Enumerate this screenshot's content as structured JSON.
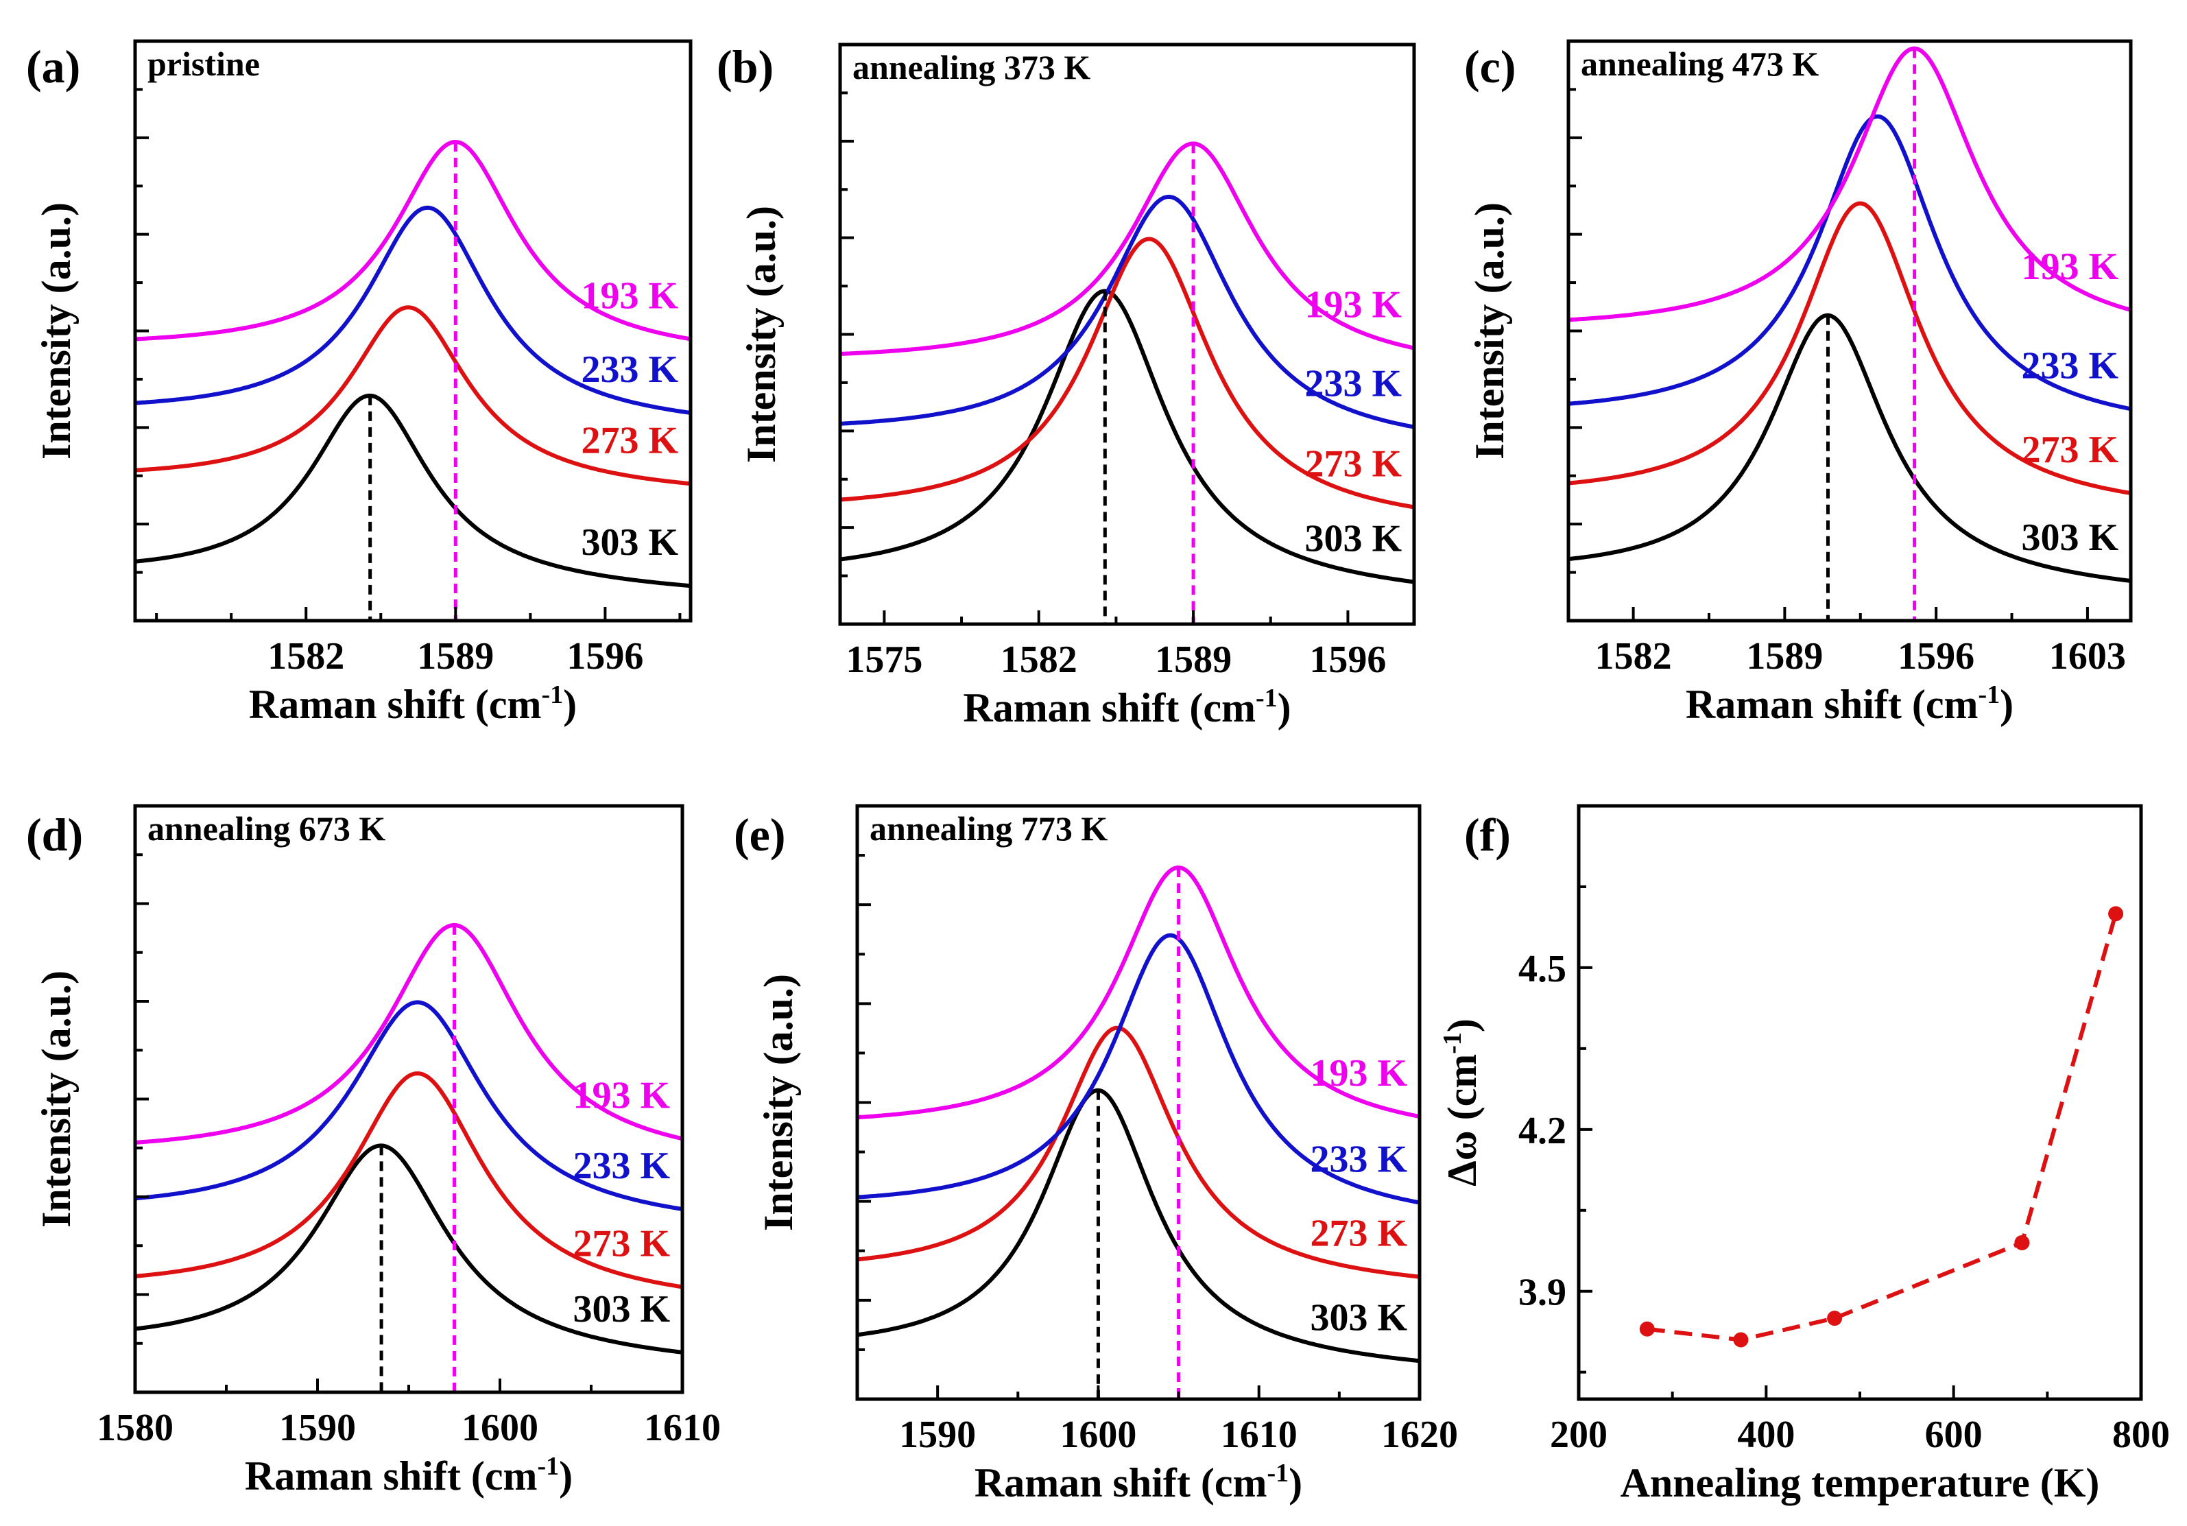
{
  "chart_data": [
    {
      "type": "line",
      "panel": "(a)",
      "title": "pristine",
      "xlabel": "Raman shift (cm-1)",
      "ylabel": "Intensity (a.u.)",
      "xlim": [
        1574,
        1600
      ],
      "xticks": [
        1582,
        1589,
        1596
      ],
      "peak_lines": [
        {
          "x": 1585,
          "color": "#000000"
        },
        {
          "x": 1589,
          "color": "#ee00ee"
        }
      ],
      "series": [
        {
          "name": "303 K",
          "color": "#000000",
          "peak": 1585,
          "width": 3.4,
          "offset": 0.0,
          "amp": 0.89,
          "slope": 0.04
        },
        {
          "name": "273 K",
          "color": "#dd1111",
          "peak": 1586.8,
          "width": 3.4,
          "offset": 0.47,
          "amp": 0.85,
          "slope": 0.03
        },
        {
          "name": "233 K",
          "color": "#1111cc",
          "peak": 1587.7,
          "width": 3.5,
          "offset": 0.78,
          "amp": 1.01,
          "slope": 0.03
        },
        {
          "name": "193 K",
          "color": "#ee00ee",
          "peak": 1589,
          "width": 3.5,
          "offset": 1.11,
          "amp": 1.0,
          "slope": 0.02
        }
      ]
    },
    {
      "type": "line",
      "panel": "(b)",
      "title": "annealing 373 K",
      "xlabel": "Raman shift (cm-1)",
      "ylabel": "Intensity (a.u.)",
      "xlim": [
        1573,
        1599
      ],
      "xticks": [
        1575,
        1582,
        1589,
        1596
      ],
      "peak_lines": [
        {
          "x": 1585,
          "color": "#000000"
        },
        {
          "x": 1589,
          "color": "#ee00ee"
        }
      ],
      "series": [
        {
          "name": "303 K",
          "color": "#000000",
          "peak": 1585,
          "width": 3.4,
          "offset": 0.0,
          "amp": 1.4,
          "slope": 0.04
        },
        {
          "name": "273 K",
          "color": "#dd1111",
          "peak": 1587,
          "width": 3.4,
          "offset": 0.33,
          "amp": 1.33,
          "slope": 0.03
        },
        {
          "name": "233 K",
          "color": "#1111cc",
          "peak": 1587.9,
          "width": 3.5,
          "offset": 0.7,
          "amp": 1.16,
          "slope": 0.03
        },
        {
          "name": "193 K",
          "color": "#ee00ee",
          "peak": 1589,
          "width": 3.5,
          "offset": 1.06,
          "amp": 1.06,
          "slope": 0.02
        }
      ]
    },
    {
      "type": "line",
      "panel": "(c)",
      "title": "annealing 473 K",
      "xlabel": "Raman shift (cm-1)",
      "ylabel": "Intensity (a.u.)",
      "xlim": [
        1579,
        1605
      ],
      "xticks": [
        1582,
        1589,
        1596,
        1603
      ],
      "peak_lines": [
        {
          "x": 1591,
          "color": "#000000"
        },
        {
          "x": 1595,
          "color": "#ee00ee"
        }
      ],
      "series": [
        {
          "name": "303 K",
          "color": "#000000",
          "peak": 1591,
          "width": 3.3,
          "offset": 0.0,
          "amp": 1.27,
          "slope": 0.04
        },
        {
          "name": "273 K",
          "color": "#dd1111",
          "peak": 1592.5,
          "width": 3.4,
          "offset": 0.38,
          "amp": 1.43,
          "slope": 0.03
        },
        {
          "name": "233 K",
          "color": "#1111cc",
          "peak": 1593.3,
          "width": 3.4,
          "offset": 0.76,
          "amp": 1.46,
          "slope": 0.03
        },
        {
          "name": "193 K",
          "color": "#ee00ee",
          "peak": 1595,
          "width": 3.5,
          "offset": 1.19,
          "amp": 1.36,
          "slope": 0.02
        }
      ]
    },
    {
      "type": "line",
      "panel": "(d)",
      "title": "annealing 673 K",
      "xlabel": "Raman shift (cm-1)",
      "ylabel": "Intensity (a.u.)",
      "xlim": [
        1580,
        1610
      ],
      "xticks": [
        1580,
        1590,
        1600,
        1610
      ],
      "peak_lines": [
        {
          "x": 1593.5,
          "color": "#000000"
        },
        {
          "x": 1597.5,
          "color": "#ee00ee"
        }
      ],
      "series": [
        {
          "name": "303 K",
          "color": "#000000",
          "peak": 1593.5,
          "width": 4.4,
          "offset": 0.0,
          "amp": 0.98,
          "slope": 0.04
        },
        {
          "name": "273 K",
          "color": "#dd1111",
          "peak": 1595.5,
          "width": 4.4,
          "offset": 0.28,
          "amp": 1.05,
          "slope": 0.03
        },
        {
          "name": "233 K",
          "color": "#1111cc",
          "peak": 1595.5,
          "width": 4.5,
          "offset": 0.64,
          "amp": 1.02,
          "slope": 0.03
        },
        {
          "name": "193 K",
          "color": "#ee00ee",
          "peak": 1597.5,
          "width": 4.5,
          "offset": 0.93,
          "amp": 1.1,
          "slope": 0.02
        }
      ]
    },
    {
      "type": "line",
      "panel": "(e)",
      "title": "annealing 773 K",
      "xlabel": "Raman shift (cm-1)",
      "ylabel": "Intensity (a.u.)",
      "xlim": [
        1585,
        1620
      ],
      "xticks": [
        1590,
        1600,
        1610,
        1620
      ],
      "peak_lines": [
        {
          "x": 1600,
          "color": "#000000"
        },
        {
          "x": 1605,
          "color": "#ee00ee"
        }
      ],
      "series": [
        {
          "name": "303 K",
          "color": "#000000",
          "peak": 1600,
          "width": 4.3,
          "offset": 0.0,
          "amp": 1.25,
          "slope": 0.04
        },
        {
          "name": "273 K",
          "color": "#dd1111",
          "peak": 1601.2,
          "width": 4.4,
          "offset": 0.38,
          "amp": 1.17,
          "slope": 0.03
        },
        {
          "name": "233 K",
          "color": "#1111cc",
          "peak": 1604.5,
          "width": 4.5,
          "offset": 0.68,
          "amp": 1.3,
          "slope": 0.03
        },
        {
          "name": "193 K",
          "color": "#ee00ee",
          "peak": 1605,
          "width": 4.6,
          "offset": 1.07,
          "amp": 1.23,
          "slope": 0.02
        }
      ]
    },
    {
      "type": "scatter",
      "panel": "(f)",
      "xlabel": "Annealing temperature (K)",
      "ylabel": "Δω (cm-1)",
      "xlim": [
        200,
        800
      ],
      "ylim": [
        3.7,
        4.8
      ],
      "xticks": [
        200,
        400,
        600,
        800
      ],
      "yticks": [
        3.9,
        4.2,
        4.5
      ],
      "ytick_labels": [
        "3.9",
        "4.2",
        "4.5"
      ],
      "color": "#dd1111",
      "x": [
        273,
        373,
        473,
        673,
        773
      ],
      "y": [
        3.83,
        3.81,
        3.85,
        3.99,
        4.6
      ]
    }
  ]
}
